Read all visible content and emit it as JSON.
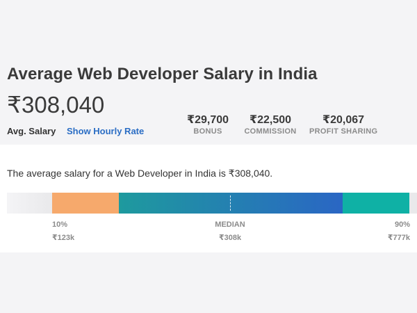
{
  "header": {
    "title": "Average Web Developer Salary in India",
    "amount": "₹308,040",
    "avg_label": "Avg. Salary",
    "hourly_link": "Show Hourly Rate",
    "extras": [
      {
        "value": "₹29,700",
        "label": "BONUS"
      },
      {
        "value": "₹22,500",
        "label": "COMMISSION"
      },
      {
        "value": "₹20,067",
        "label": "PROFIT SHARING"
      }
    ]
  },
  "summary": {
    "description": "The average salary for a Web Developer in India is ₹308,040."
  },
  "range": {
    "p10": {
      "label": "10%",
      "value": "₹123k"
    },
    "median": {
      "label": "MEDIAN",
      "value": "₹308k"
    },
    "p90": {
      "label": "90%",
      "value": "₹777k"
    },
    "colors": {
      "p10": "#f6a96c",
      "median_start": "#1e9a9e",
      "median_end": "#2a66c4",
      "p90": "#0fb1a5"
    }
  }
}
